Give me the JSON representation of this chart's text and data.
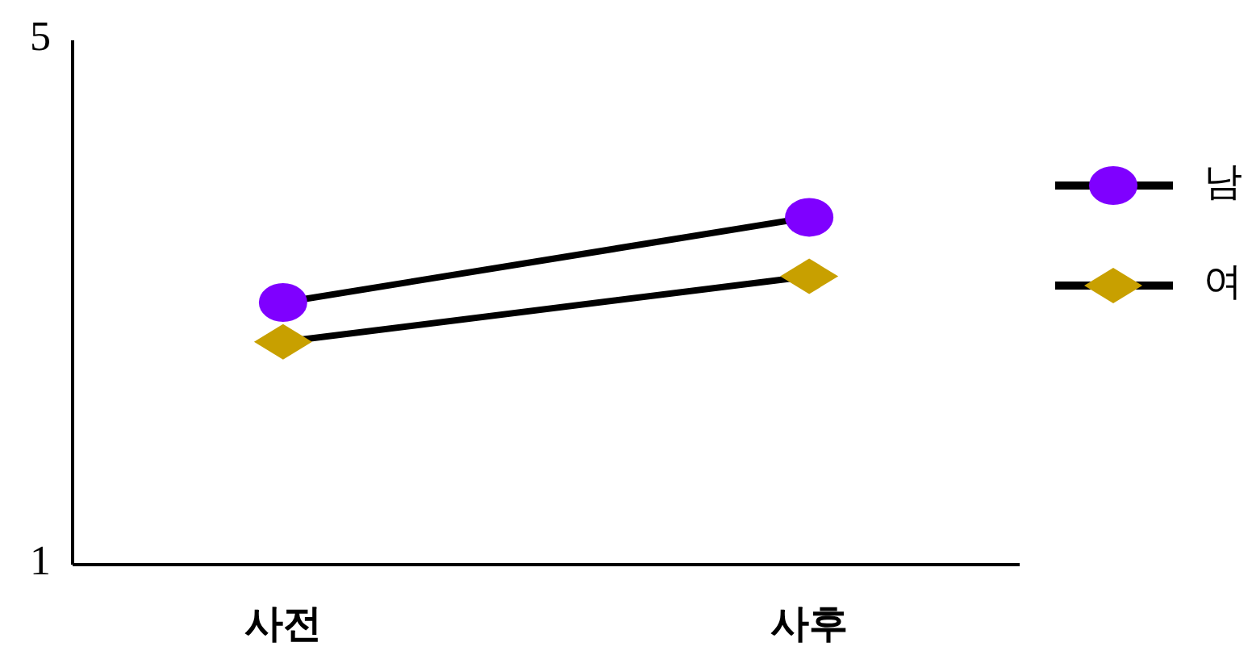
{
  "chart_data": {
    "type": "line",
    "categories": [
      "사전",
      "사후"
    ],
    "ylim": [
      1,
      5
    ],
    "yticks": [
      1,
      5
    ],
    "grid": false,
    "legend": "right",
    "series": [
      {
        "name": "남",
        "color": "#7f00ff",
        "marker": "circle",
        "values": [
          3.0,
          3.65
        ]
      },
      {
        "name": "여",
        "color": "#c8a000",
        "marker": "diamond",
        "values": [
          2.7,
          3.2
        ]
      }
    ]
  }
}
